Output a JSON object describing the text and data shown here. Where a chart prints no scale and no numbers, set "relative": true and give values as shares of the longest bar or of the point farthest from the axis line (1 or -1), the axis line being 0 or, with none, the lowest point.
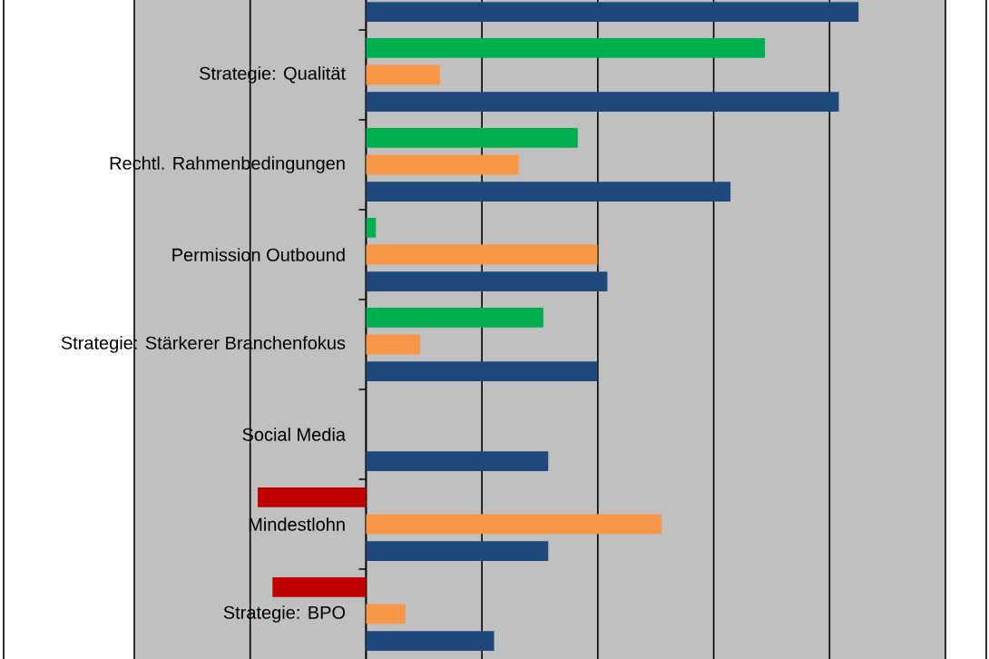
{
  "chart_data": {
    "type": "bar",
    "orientation": "horizontal",
    "relative": true,
    "grid": "x",
    "tick_labels": "y",
    "categories": [
      null,
      "Strategie: Qualität",
      "Rechtl. Rahmenbedingungen",
      "Permission Outbound",
      "Strategie: Stärkerer Branchenfokus",
      "Social Media",
      "Mindestlohn",
      "Strategie: BPO"
    ],
    "series": [
      {
        "color": "#00b050",
        "colors": [
          null,
          null,
          null,
          null,
          null,
          null,
          "#c00000",
          "#c00000"
        ],
        "values": [
          null,
          0.81,
          0.43,
          0.02,
          0.36,
          0,
          -0.22,
          -0.19
        ]
      },
      {
        "color": "#f79646",
        "values": [
          null,
          0.15,
          0.31,
          0.47,
          0.11,
          0,
          0.6,
          0.08
        ]
      },
      {
        "color": "#1f497d",
        "values": [
          1,
          0.96,
          0.74,
          0.49,
          0.47,
          0.37,
          0.37,
          0.26
        ]
      }
    ]
  }
}
